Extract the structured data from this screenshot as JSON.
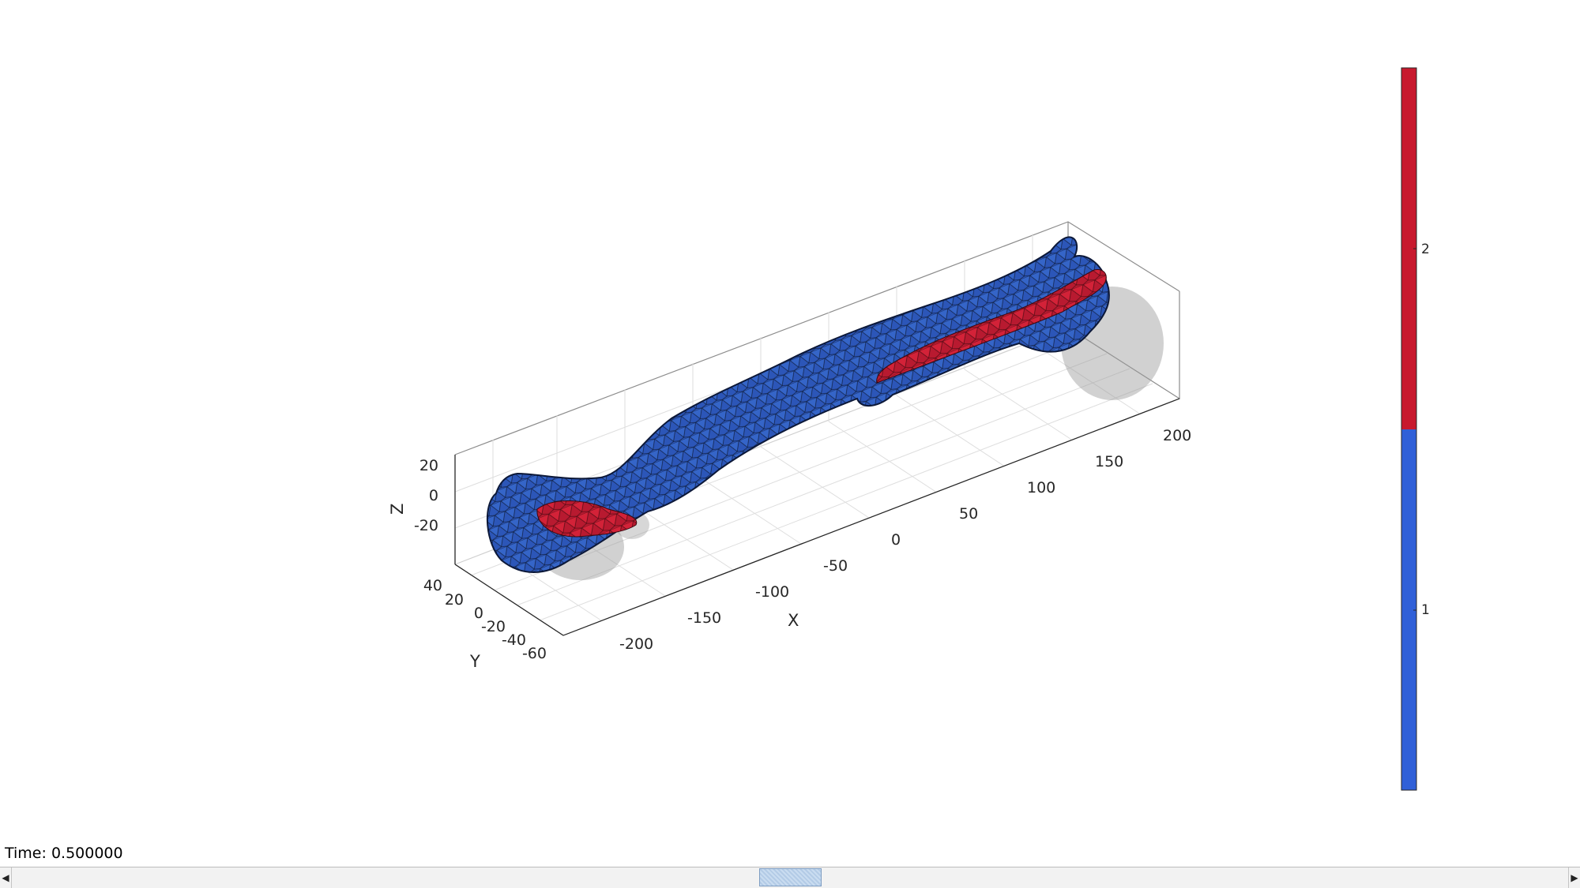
{
  "figure": {
    "axes": {
      "x_label": "X",
      "y_label": "Y",
      "z_label": "Z",
      "x_ticks": [
        "-200",
        "-150",
        "-100",
        "-50",
        "0",
        "50",
        "100",
        "150",
        "200"
      ],
      "y_ticks": [
        "40",
        "20",
        "0",
        "-20",
        "-40",
        "-60"
      ],
      "z_ticks": [
        "20",
        "0",
        "-20"
      ],
      "x_range": [
        -230,
        230
      ],
      "y_range": [
        -70,
        50
      ],
      "z_range": [
        -40,
        30
      ],
      "grid": true
    },
    "colorbar": {
      "ticks": [
        "2",
        "1"
      ],
      "colors": [
        "#c8192e",
        "#3060d8"
      ]
    },
    "colors": {
      "region_1": "#2c56b8",
      "region_2": "#b81a30",
      "ghost_surface": "#bdbdbd"
    }
  },
  "status": {
    "time_text": "Time: 0.500000"
  },
  "slider": {
    "position": 0.5,
    "left_arrow": "◀",
    "right_arrow": "▶"
  }
}
